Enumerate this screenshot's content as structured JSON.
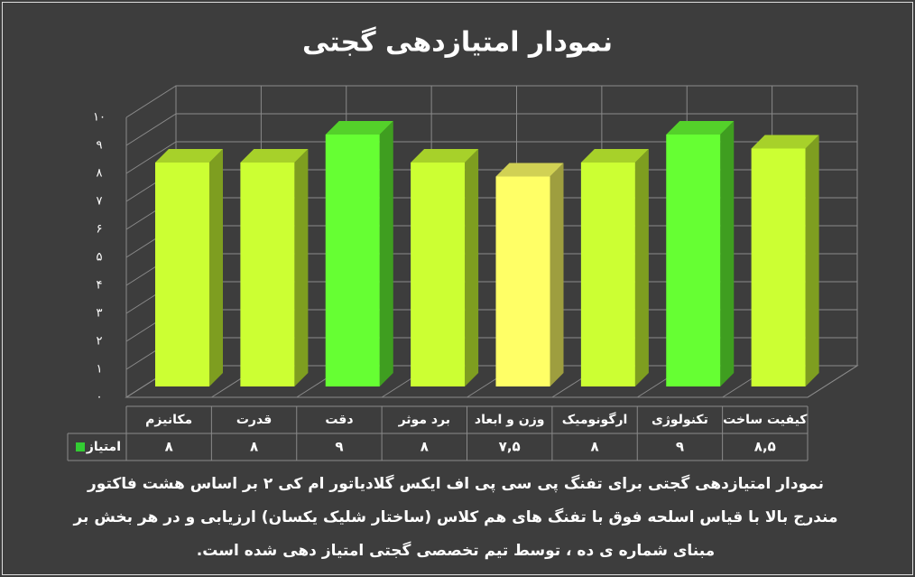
{
  "chart_data": {
    "type": "bar3d",
    "title": "نمودار امتیازدهی گجتی",
    "categories": [
      "مکانیزم",
      "قدرت",
      "دقت",
      "برد موثر",
      "وزن و ابعاد",
      "ارگونومیک",
      "تکنولوژی",
      "کیفیت ساخت"
    ],
    "series": [
      {
        "name": "امتیاز",
        "color": "#33cc33",
        "values": [
          8,
          8,
          9,
          8,
          7.5,
          8,
          9,
          8.5
        ],
        "value_labels": [
          "۸",
          "۸",
          "۹",
          "۸",
          "۷,۵",
          "۸",
          "۹",
          "۸,۵"
        ],
        "colors": [
          "#ccff33",
          "#ccff33",
          "#66ff33",
          "#ccff33",
          "#ffff66",
          "#ccff33",
          "#66ff33",
          "#ccff33"
        ]
      }
    ],
    "ylim": [
      0,
      10
    ],
    "yticks": [
      {
        "value": 0,
        "label": "۰"
      },
      {
        "value": 1,
        "label": "۱"
      },
      {
        "value": 2,
        "label": "۲"
      },
      {
        "value": 3,
        "label": "۳"
      },
      {
        "value": 4,
        "label": "۴"
      },
      {
        "value": 5,
        "label": "۵"
      },
      {
        "value": 6,
        "label": "۶"
      },
      {
        "value": 7,
        "label": "۷"
      },
      {
        "value": 8,
        "label": "۸"
      },
      {
        "value": 9,
        "label": "۹"
      },
      {
        "value": 10,
        "label": "۱۰"
      }
    ],
    "grid": true,
    "caption": "نمودار امتیازدهی گجتی برای تفنگ پی سی پی اف ایکس گلادیاتور ام کی ۲ بر اساس هشت فاکتور مندرج بالا با قیاس اسلحه فوق با تفنگ های هم کلاس (ساختار شلیک یکسان) ارزیابی و در هر بخش بر مبنای شماره ی ده ، توسط تیم تخصصی گجتی امتیاز دهی شده است."
  }
}
